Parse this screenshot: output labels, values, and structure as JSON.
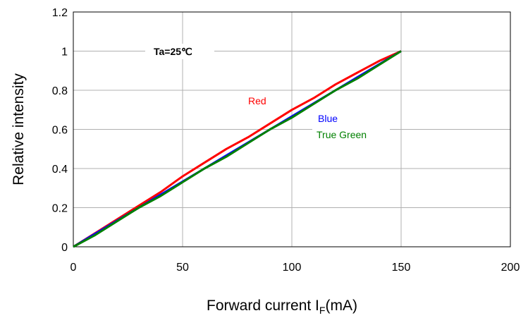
{
  "chart_data": {
    "type": "line",
    "title": "",
    "xlabel": "Forward current I",
    "xlabel_sub": "F",
    "xlabel_unit": "(mA)",
    "ylabel": "Relative intensity",
    "xlim": [
      0,
      200
    ],
    "ylim": [
      0,
      1.2
    ],
    "x_ticks": [
      "0",
      "50",
      "100",
      "150",
      "200"
    ],
    "y_ticks": [
      "0",
      "0.2",
      "0.4",
      "0.6",
      "0.8",
      "1",
      "1.2"
    ],
    "grid": true,
    "condition_label": "Ta=25℃",
    "series": [
      {
        "name": "Red",
        "color": "#ff0000",
        "x": [
          0,
          10,
          20,
          30,
          40,
          50,
          60,
          70,
          80,
          90,
          100,
          110,
          120,
          130,
          140,
          150
        ],
        "values": [
          0,
          0.07,
          0.14,
          0.21,
          0.28,
          0.36,
          0.43,
          0.5,
          0.56,
          0.63,
          0.7,
          0.76,
          0.83,
          0.89,
          0.95,
          1.0
        ]
      },
      {
        "name": "Blue",
        "color": "#0000ff",
        "x": [
          0,
          150
        ],
        "values": [
          0,
          1.0
        ]
      },
      {
        "name": "True Green",
        "color": "#008000",
        "x": [
          0,
          10,
          20,
          30,
          40,
          50,
          60,
          70,
          80,
          90,
          100,
          110,
          120,
          130,
          140,
          150
        ],
        "values": [
          0,
          0.06,
          0.13,
          0.2,
          0.26,
          0.33,
          0.4,
          0.46,
          0.53,
          0.6,
          0.66,
          0.73,
          0.8,
          0.86,
          0.93,
          1.0
        ]
      }
    ]
  }
}
